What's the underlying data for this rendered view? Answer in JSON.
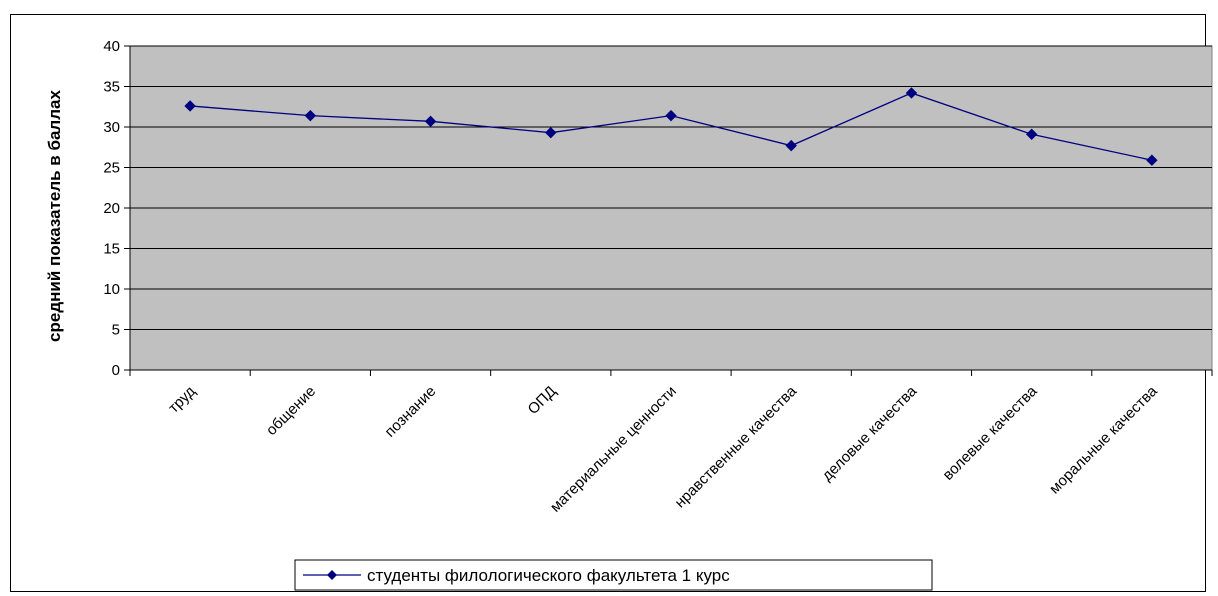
{
  "chart_data": {
    "type": "line",
    "title": "",
    "xlabel": "",
    "ylabel": "средний показатель в баллах",
    "ylim": [
      0,
      40
    ],
    "yticks": [
      0,
      5,
      10,
      15,
      20,
      25,
      30,
      35,
      40
    ],
    "grid": true,
    "legend_position": "bottom",
    "categories": [
      "труд",
      "общение",
      "познание",
      "ОПД",
      "материальные ценности",
      "нравственные качества",
      "деловые качества",
      "волевые качества",
      "моральные качества"
    ],
    "series": [
      {
        "name": "студенты филологического факультета 1 курс",
        "color": "#000080",
        "values": [
          32.6,
          31.4,
          30.7,
          29.3,
          31.4,
          27.7,
          34.2,
          29.1,
          25.9
        ]
      }
    ],
    "plot_background": "#c0c0c0"
  }
}
